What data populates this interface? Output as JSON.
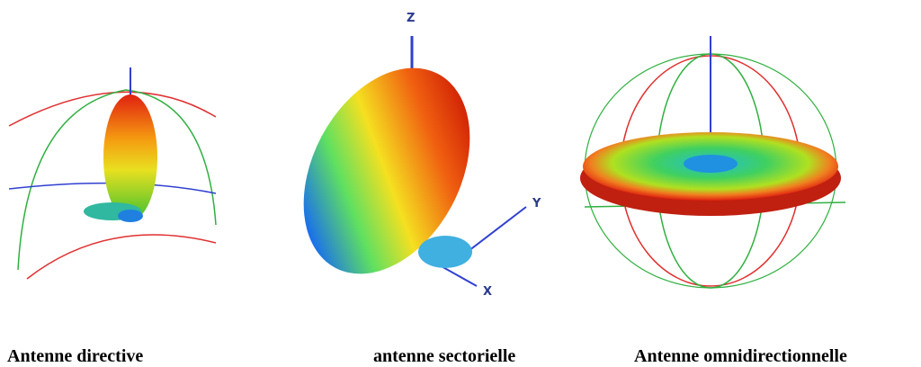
{
  "figure": {
    "axis_labels": {
      "z": "Z",
      "y": "Y",
      "x": "X"
    },
    "captions": [
      "Antenne directive",
      "antenne sectorielle",
      "Antenne omnidirectionnelle"
    ]
  }
}
